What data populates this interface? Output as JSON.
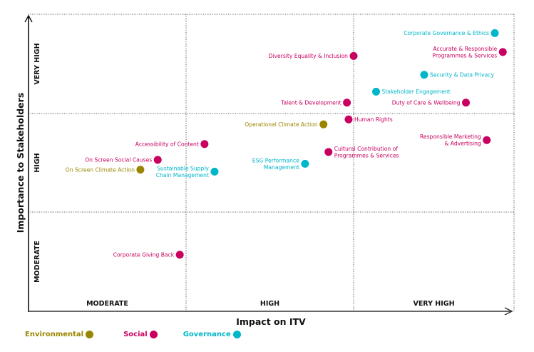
{
  "chart_data": {
    "type": "scatter",
    "title": "",
    "xlabel": "Impact on ITV",
    "ylabel": "Importance to Stakeholders",
    "xlim": [
      0,
      3
    ],
    "ylim": [
      0,
      3
    ],
    "grid": true,
    "x_bands": [
      "MODERATE",
      "HIGH",
      "VERY HIGH"
    ],
    "y_bands": [
      "MODERATE",
      "HIGH",
      "VERY HIGH"
    ],
    "categories": {
      "Environmental": "#9a8500",
      "Social": "#c8005f",
      "Governance": "#00b6c9"
    },
    "legend": [
      {
        "name": "Environmental",
        "color": "#9a8500"
      },
      {
        "name": "Social",
        "color": "#c8005f"
      },
      {
        "name": "Governance",
        "color": "#00b6c9"
      }
    ],
    "legend_position": "bottom-left",
    "points": [
      {
        "label": [
          "Corporate Governance & Ethics"
        ],
        "category": "Governance",
        "x": 2.88,
        "y": 2.81,
        "label_side": "left"
      },
      {
        "label": [
          "Accurate & Responsible",
          "Programmes & Services"
        ],
        "category": "Social",
        "x": 2.93,
        "y": 2.62,
        "label_side": "left"
      },
      {
        "label": [
          "Diversity Equality & Inclusion"
        ],
        "category": "Social",
        "x": 2.0,
        "y": 2.58,
        "label_side": "left"
      },
      {
        "label": [
          "Security & Data Privacy"
        ],
        "category": "Governance",
        "x": 2.44,
        "y": 2.39,
        "label_side": "right"
      },
      {
        "label": [
          "Stakeholder Engagement"
        ],
        "category": "Governance",
        "x": 2.14,
        "y": 2.22,
        "label_side": "right"
      },
      {
        "label": [
          "Talent & Development"
        ],
        "category": "Social",
        "x": 1.96,
        "y": 2.11,
        "label_side": "left"
      },
      {
        "label": [
          "Duty of Care & Wellbeing"
        ],
        "category": "Social",
        "x": 2.7,
        "y": 2.11,
        "label_side": "left"
      },
      {
        "label": [
          "Human Rights"
        ],
        "category": "Social",
        "x": 1.97,
        "y": 1.94,
        "label_side": "right"
      },
      {
        "label": [
          "Operational Climate Action"
        ],
        "category": "Environmental",
        "x": 1.82,
        "y": 1.89,
        "label_side": "left"
      },
      {
        "label": [
          "Responsible Marketing",
          "& Advertising"
        ],
        "category": "Social",
        "x": 2.83,
        "y": 1.73,
        "label_side": "left"
      },
      {
        "label": [
          "Accessibility of Content"
        ],
        "category": "Social",
        "x": 1.11,
        "y": 1.69,
        "label_side": "left"
      },
      {
        "label": [
          "Cultural Contribution of",
          "Programmes & Services"
        ],
        "category": "Social",
        "x": 1.85,
        "y": 1.61,
        "label_side": "right"
      },
      {
        "label": [
          "On Screen Social Causes"
        ],
        "category": "Social",
        "x": 0.82,
        "y": 1.53,
        "label_side": "left"
      },
      {
        "label": [
          "ESG Performance",
          "Management"
        ],
        "category": "Governance",
        "x": 1.71,
        "y": 1.49,
        "label_side": "left"
      },
      {
        "label": [
          "On Screen Climate Action"
        ],
        "category": "Environmental",
        "x": 0.71,
        "y": 1.43,
        "label_side": "left"
      },
      {
        "label": [
          "Sustainable Supply",
          "Chain Management"
        ],
        "category": "Governance",
        "x": 1.17,
        "y": 1.41,
        "label_side": "left"
      },
      {
        "label": [
          "Corporate Giving Back"
        ],
        "category": "Social",
        "x": 0.96,
        "y": 0.57,
        "label_side": "left"
      }
    ]
  }
}
